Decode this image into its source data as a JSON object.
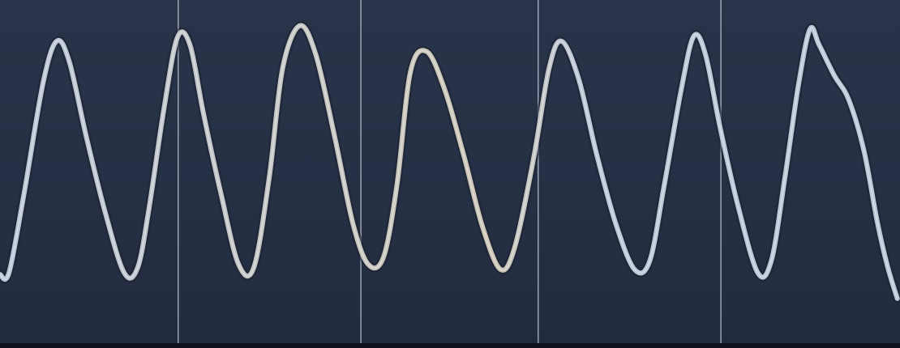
{
  "colors": {
    "background": "#263045",
    "grid": "#cfd6e2",
    "trace": "#bcc7d8",
    "trace_warm": "#cfc7b4",
    "trace_shadow": "#1b2232"
  },
  "chart_data": {
    "type": "line",
    "title": "",
    "xlabel": "",
    "ylabel": "",
    "grid": true,
    "legend": "none",
    "xlim": [
      0,
      100
    ],
    "ylim": [
      0,
      100
    ],
    "vertical_gridlines_x": [
      19.8,
      40.1,
      59.8,
      80.1
    ],
    "series": [
      {
        "name": "",
        "x": [
          0.0,
          1.0,
          2.7,
          4.8,
          6.3,
          7.7,
          9.6,
          11.7,
          13.8,
          15.3,
          16.6,
          18.2,
          19.7,
          21.1,
          22.6,
          24.6,
          26.5,
          28.2,
          29.9,
          31.4,
          33.3,
          35.1,
          37.2,
          39.2,
          40.9,
          42.6,
          44.1,
          45.6,
          47.4,
          49.4,
          51.6,
          53.6,
          55.6,
          57.2,
          59.3,
          61.0,
          62.4,
          64.3,
          66.3,
          68.4,
          70.5,
          72.2,
          73.8,
          75.7,
          77.1,
          78.4,
          80.0,
          82.0,
          84.2,
          85.7,
          87.2,
          88.7,
          90.0,
          91.0,
          92.7,
          94.3,
          96.0,
          97.5,
          98.6,
          99.7
        ],
        "y": [
          20.0,
          20.5,
          44.0,
          76.0,
          88.0,
          82.0,
          60.0,
          38.0,
          20.5,
          22.0,
          40.0,
          68.0,
          89.0,
          87.0,
          67.0,
          43.0,
          23.0,
          22.0,
          48.0,
          80.0,
          92.5,
          84.0,
          60.0,
          35.0,
          23.0,
          25.0,
          46.0,
          79.0,
          85.0,
          74.0,
          54.0,
          34.0,
          21.5,
          28.0,
          54.0,
          80.0,
          88.0,
          77.0,
          55.0,
          35.0,
          21.5,
          24.0,
          46.0,
          74.0,
          89.5,
          84.0,
          63.0,
          40.0,
          20.5,
          24.0,
          48.0,
          75.0,
          91.5,
          87.0,
          78.0,
          71.0,
          56.0,
          35.0,
          22.5,
          13.0
        ]
      }
    ]
  }
}
